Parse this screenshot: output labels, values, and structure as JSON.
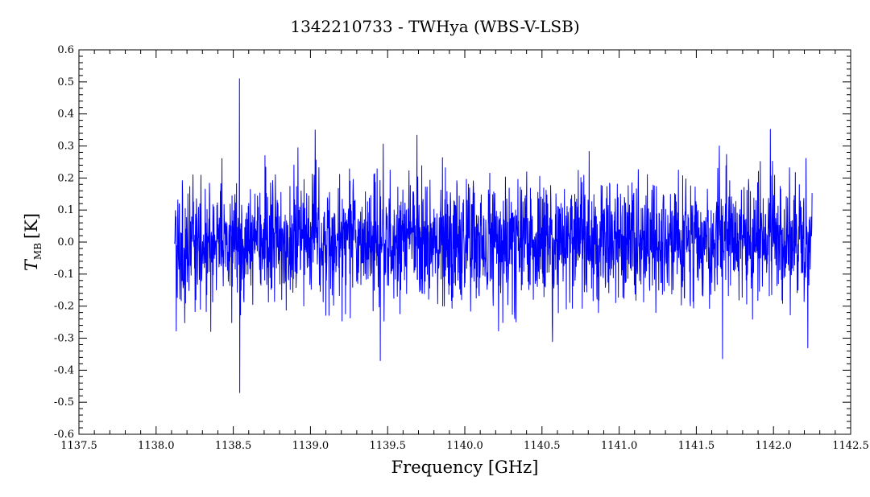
{
  "chart_data": {
    "type": "line",
    "title": "1342210733 - TWHya (WBS-V-LSB)",
    "xlabel": "Frequency [GHz]",
    "ylabel_main": "T",
    "ylabel_sub": "MB",
    "ylabel_unit": "[K]",
    "xlim": [
      1137.5,
      1142.5
    ],
    "ylim": [
      -0.6,
      0.6
    ],
    "x_ticks": [
      1137.5,
      1138.0,
      1138.5,
      1139.0,
      1139.5,
      1140.0,
      1140.5,
      1141.0,
      1141.5,
      1142.0,
      1142.5
    ],
    "x_tick_labels": [
      "1137.5",
      "1138.0",
      "1138.5",
      "1139.0",
      "1139.5",
      "1140.0",
      "1140.5",
      "1141.0",
      "1141.5",
      "1142.0",
      "1142.5"
    ],
    "y_ticks": [
      -0.6,
      -0.5,
      -0.4,
      -0.3,
      -0.2,
      -0.1,
      0.0,
      0.1,
      0.2,
      0.3,
      0.4,
      0.5,
      0.6
    ],
    "y_tick_labels": [
      "-0.6",
      "-0.5",
      "-0.4",
      "-0.3",
      "-0.2",
      "-0.1",
      "0.0",
      "0.1",
      "0.2",
      "0.3",
      "0.4",
      "0.5",
      "0.6"
    ],
    "grid": false,
    "series": [
      {
        "color": "#0000ff",
        "x_start": 1138.12,
        "x_end": 1142.25,
        "noise_rms": 0.1,
        "notable_peaks": [
          {
            "x": 1138.54,
            "y": 0.51
          },
          {
            "x": 1138.54,
            "y": -0.47
          },
          {
            "x": 1139.03,
            "y": 0.35
          },
          {
            "x": 1139.45,
            "y": -0.37
          },
          {
            "x": 1141.65,
            "y": 0.3
          },
          {
            "x": 1142.22,
            "y": -0.33
          }
        ]
      }
    ]
  }
}
